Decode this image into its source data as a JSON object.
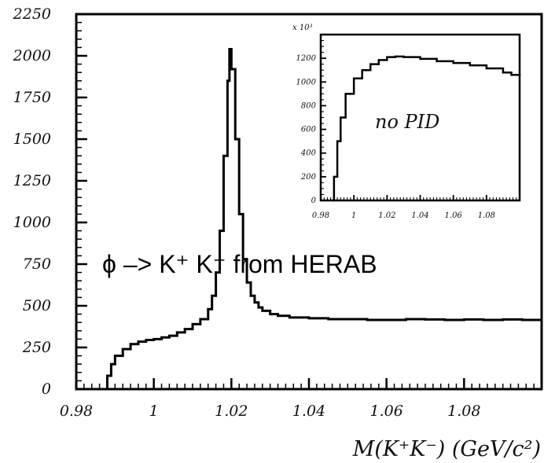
{
  "chart_data": [
    {
      "type": "line",
      "style": "histogram",
      "xlabel": "M(K⁺K⁻) (GeV/c²)",
      "ylabel": "",
      "xlim": [
        0.98,
        1.1
      ],
      "ylim": [
        0,
        2250
      ],
      "x_ticks": [
        "0.98",
        "1",
        "1.02",
        "1.04",
        "1.06",
        "1.08"
      ],
      "y_ticks": [
        "0",
        "250",
        "500",
        "750",
        "1000",
        "1250",
        "1500",
        "1750",
        "2000",
        "2250"
      ],
      "annotation": "ϕ –> K⁺ K⁻  from HERAB",
      "series": [
        {
          "x": [
            0.987,
            0.988,
            0.989,
            0.99,
            0.992,
            0.994,
            0.996,
            0.998,
            1.0,
            1.002,
            1.004,
            1.006,
            1.008,
            1.01,
            1.012,
            1.014,
            1.015,
            1.016,
            1.017,
            1.018,
            1.019,
            1.0195,
            1.02,
            1.021,
            1.022,
            1.023,
            1.024,
            1.025,
            1.026,
            1.027,
            1.028,
            1.03,
            1.032,
            1.035,
            1.04,
            1.045,
            1.05,
            1.055,
            1.06,
            1.065,
            1.07,
            1.075,
            1.08,
            1.085,
            1.09,
            1.095,
            1.1
          ],
          "y": [
            0,
            80,
            150,
            200,
            240,
            270,
            285,
            295,
            300,
            310,
            320,
            340,
            360,
            390,
            420,
            480,
            560,
            700,
            950,
            1400,
            1850,
            2040,
            1920,
            1500,
            1050,
            780,
            640,
            560,
            520,
            490,
            470,
            450,
            440,
            430,
            425,
            420,
            420,
            415,
            415,
            420,
            418,
            415,
            418,
            415,
            418,
            415,
            410
          ]
        }
      ]
    },
    {
      "type": "line",
      "style": "histogram",
      "xlim": [
        0.98,
        1.1
      ],
      "ylim": [
        0,
        1400
      ],
      "y_scale_label": "x 10³",
      "x_ticks": [
        "0.98",
        "1",
        "1.02",
        "1.04",
        "1.06",
        "1.08"
      ],
      "y_ticks": [
        "0",
        "200",
        "400",
        "600",
        "800",
        "1000",
        "1200"
      ],
      "annotation": "no PID",
      "series": [
        {
          "x": [
            0.987,
            0.988,
            0.99,
            0.992,
            0.995,
            1.0,
            1.005,
            1.01,
            1.015,
            1.02,
            1.025,
            1.03,
            1.04,
            1.05,
            1.06,
            1.07,
            1.08,
            1.09,
            1.095,
            1.1
          ],
          "y": [
            0,
            200,
            500,
            700,
            900,
            1030,
            1100,
            1150,
            1185,
            1210,
            1215,
            1210,
            1195,
            1175,
            1160,
            1140,
            1115,
            1080,
            1060,
            1050
          ]
        }
      ]
    }
  ]
}
